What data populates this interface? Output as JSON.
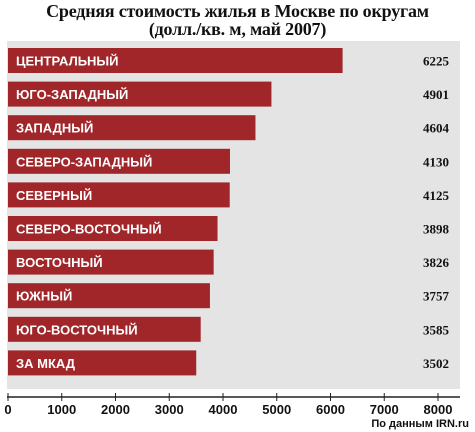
{
  "chart_data": {
    "type": "bar",
    "orientation": "horizontal",
    "title": "Средняя стоимость жилья в Москве по округам",
    "subtitle": "(долл./кв. м, май 2007)",
    "categories": [
      "ЦЕНТРАЛЬНЫЙ",
      "ЮГО-ЗАПАДНЫЙ",
      "ЗАПАДНЫЙ",
      "СЕВЕРО-ЗАПАДНЫЙ",
      "СЕВЕРНЫЙ",
      "СЕВЕРО-ВОСТОЧНЫЙ",
      "ВОСТОЧНЫЙ",
      "ЮЖНЫЙ",
      "ЮГО-ВОСТОЧНЫЙ",
      "ЗА МКАД"
    ],
    "values": [
      6225,
      4901,
      4604,
      4130,
      4125,
      3898,
      3826,
      3757,
      3585,
      3502
    ],
    "value_labels": [
      "6225",
      "4901",
      "4604",
      "4130",
      "4125",
      "3898",
      "3826",
      "3757",
      "3585",
      "3502"
    ],
    "xlim": [
      0,
      8000
    ],
    "xticks": [
      "0",
      "1000",
      "2000",
      "3000",
      "4000",
      "5000",
      "6000",
      "7000",
      "8000"
    ],
    "grid": false,
    "bar_color": "#a0262a",
    "background_color": "#e4e4e4",
    "source": "По данным IRN.ru"
  }
}
